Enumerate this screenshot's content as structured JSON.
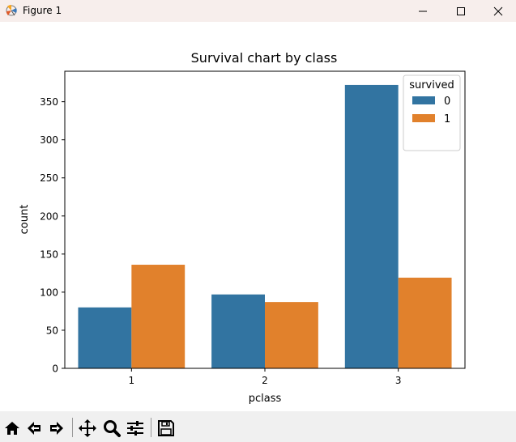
{
  "window": {
    "title": "Figure 1",
    "controls": [
      "minimize",
      "maximize",
      "close"
    ]
  },
  "toolbar": {
    "tools": [
      {
        "name": "home-icon"
      },
      {
        "name": "back-icon"
      },
      {
        "name": "forward-icon"
      },
      {
        "name": "pan-icon"
      },
      {
        "name": "zoom-icon"
      },
      {
        "name": "configure-subplots-icon"
      },
      {
        "name": "save-icon"
      }
    ]
  },
  "chart_data": {
    "type": "bar",
    "title": "Survival chart by class",
    "xlabel": "pclass",
    "ylabel": "count",
    "categories": [
      "1",
      "2",
      "3"
    ],
    "series": [
      {
        "name": "0",
        "values": [
          80,
          97,
          372
        ],
        "color": "#3274a1"
      },
      {
        "name": "1",
        "values": [
          136,
          87,
          119
        ],
        "color": "#e1812c"
      }
    ],
    "ylim": [
      0,
      390
    ],
    "yticks": [
      0,
      50,
      100,
      150,
      200,
      250,
      300,
      350
    ],
    "legend": {
      "title": "survived",
      "position": "top-right"
    },
    "grid": false
  }
}
